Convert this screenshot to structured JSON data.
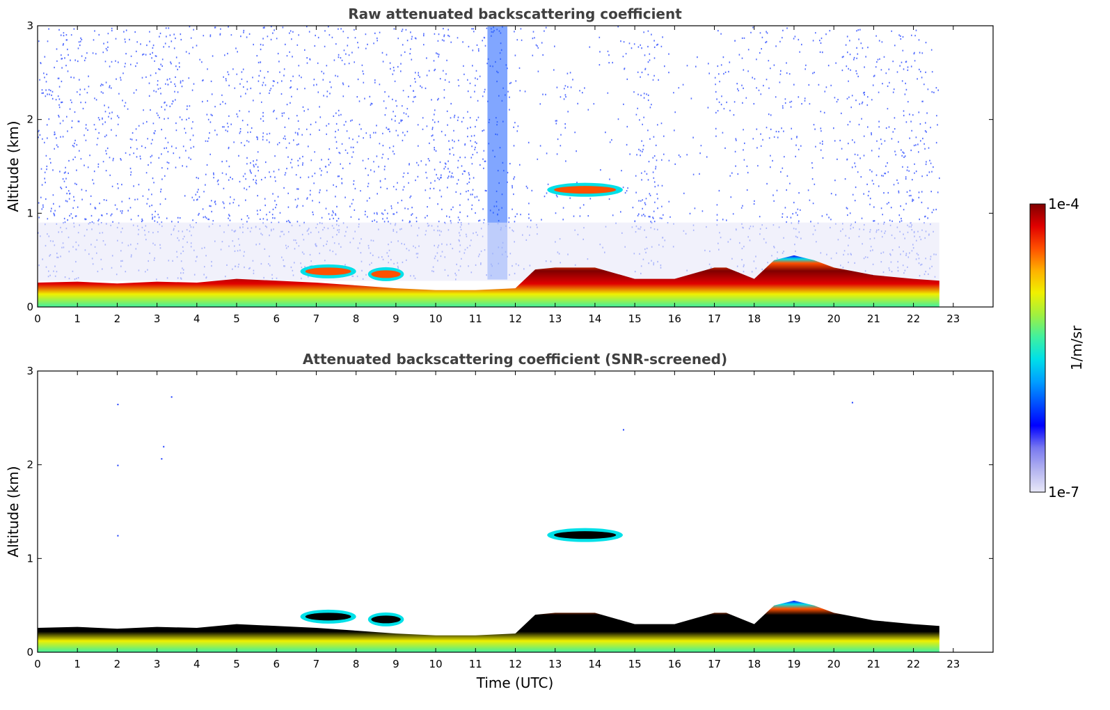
{
  "chart_data": [
    {
      "type": "heatmap",
      "title": "Raw attenuated backscattering coefficient",
      "xlabel": "",
      "ylabel": "Altitude (km)",
      "xlim": [
        0,
        24
      ],
      "ylim": [
        0,
        3
      ],
      "x_ticks": [
        "0",
        "1",
        "2",
        "3",
        "4",
        "5",
        "6",
        "7",
        "8",
        "9",
        "10",
        "11",
        "12",
        "13",
        "14",
        "15",
        "16",
        "17",
        "18",
        "19",
        "20",
        "21",
        "22",
        "23"
      ],
      "y_ticks": [
        "0",
        "1",
        "2",
        "3"
      ],
      "data_end_time": 22.65,
      "noise": "dense",
      "boundary_layer_top_km": [
        [
          0,
          0.26
        ],
        [
          1,
          0.27
        ],
        [
          2,
          0.25
        ],
        [
          3,
          0.27
        ],
        [
          4,
          0.26
        ],
        [
          5,
          0.3
        ],
        [
          6,
          0.28
        ],
        [
          7,
          0.26
        ],
        [
          8,
          0.23
        ],
        [
          9,
          0.2
        ],
        [
          10,
          0.18
        ],
        [
          11,
          0.18
        ],
        [
          12,
          0.2
        ],
        [
          12.5,
          0.4
        ],
        [
          13,
          0.42
        ],
        [
          14,
          0.42
        ],
        [
          15,
          0.3
        ],
        [
          16,
          0.3
        ],
        [
          17,
          0.42
        ],
        [
          17.3,
          0.42
        ],
        [
          18,
          0.3
        ],
        [
          18.5,
          0.5
        ],
        [
          19,
          0.55
        ],
        [
          19.5,
          0.5
        ],
        [
          20,
          0.42
        ],
        [
          20.5,
          0.38
        ],
        [
          21,
          0.34
        ],
        [
          22,
          0.3
        ],
        [
          22.65,
          0.28
        ]
      ],
      "elevated_layers": [
        {
          "t_start": 12.8,
          "t_end": 14.7,
          "altitude_km": 1.25
        },
        {
          "t_start": 6.6,
          "t_end": 8.0,
          "altitude_km": 0.38
        },
        {
          "t_start": 8.3,
          "t_end": 9.2,
          "altitude_km": 0.35
        }
      ]
    },
    {
      "type": "heatmap",
      "title": "Attenuated backscattering coefficient (SNR-screened)",
      "xlabel": "Time (UTC)",
      "ylabel": "Altitude (km)",
      "xlim": [
        0,
        24
      ],
      "ylim": [
        0,
        3
      ],
      "x_ticks": [
        "0",
        "1",
        "2",
        "3",
        "4",
        "5",
        "6",
        "7",
        "8",
        "9",
        "10",
        "11",
        "12",
        "13",
        "14",
        "15",
        "16",
        "17",
        "18",
        "19",
        "20",
        "21",
        "22",
        "23"
      ],
      "y_ticks": [
        "0",
        "1",
        "2",
        "3"
      ],
      "data_end_time": 22.65,
      "noise": "screened",
      "boundary_layer_top_km": [
        [
          0,
          0.26
        ],
        [
          1,
          0.27
        ],
        [
          2,
          0.25
        ],
        [
          3,
          0.27
        ],
        [
          4,
          0.26
        ],
        [
          5,
          0.3
        ],
        [
          6,
          0.28
        ],
        [
          7,
          0.26
        ],
        [
          8,
          0.23
        ],
        [
          9,
          0.2
        ],
        [
          10,
          0.18
        ],
        [
          11,
          0.18
        ],
        [
          12,
          0.2
        ],
        [
          12.5,
          0.4
        ],
        [
          13,
          0.42
        ],
        [
          14,
          0.42
        ],
        [
          15,
          0.3
        ],
        [
          16,
          0.3
        ],
        [
          17,
          0.42
        ],
        [
          17.3,
          0.42
        ],
        [
          18,
          0.3
        ],
        [
          18.5,
          0.5
        ],
        [
          19,
          0.55
        ],
        [
          19.5,
          0.5
        ],
        [
          20,
          0.42
        ],
        [
          20.5,
          0.38
        ],
        [
          21,
          0.34
        ],
        [
          22,
          0.3
        ],
        [
          22.65,
          0.28
        ]
      ],
      "elevated_layers": [
        {
          "t_start": 12.8,
          "t_end": 14.7,
          "altitude_km": 1.25
        },
        {
          "t_start": 6.6,
          "t_end": 8.0,
          "altitude_km": 0.38
        },
        {
          "t_start": 8.3,
          "t_end": 9.2,
          "altitude_km": 0.35
        }
      ]
    }
  ],
  "colorbar": {
    "label": "1/m/sr",
    "max_label": "1e-4",
    "min_label": "1e-7",
    "scale": "log",
    "range": [
      1e-07,
      0.0001
    ],
    "colors": [
      "#e8e8f8",
      "#b4b4f0",
      "#7878f0",
      "#0000ff",
      "#0050ff",
      "#00a0ff",
      "#00e0e8",
      "#40f0a0",
      "#a0f040",
      "#f0f000",
      "#ffb000",
      "#ff5000",
      "#e00000",
      "#800000"
    ]
  }
}
